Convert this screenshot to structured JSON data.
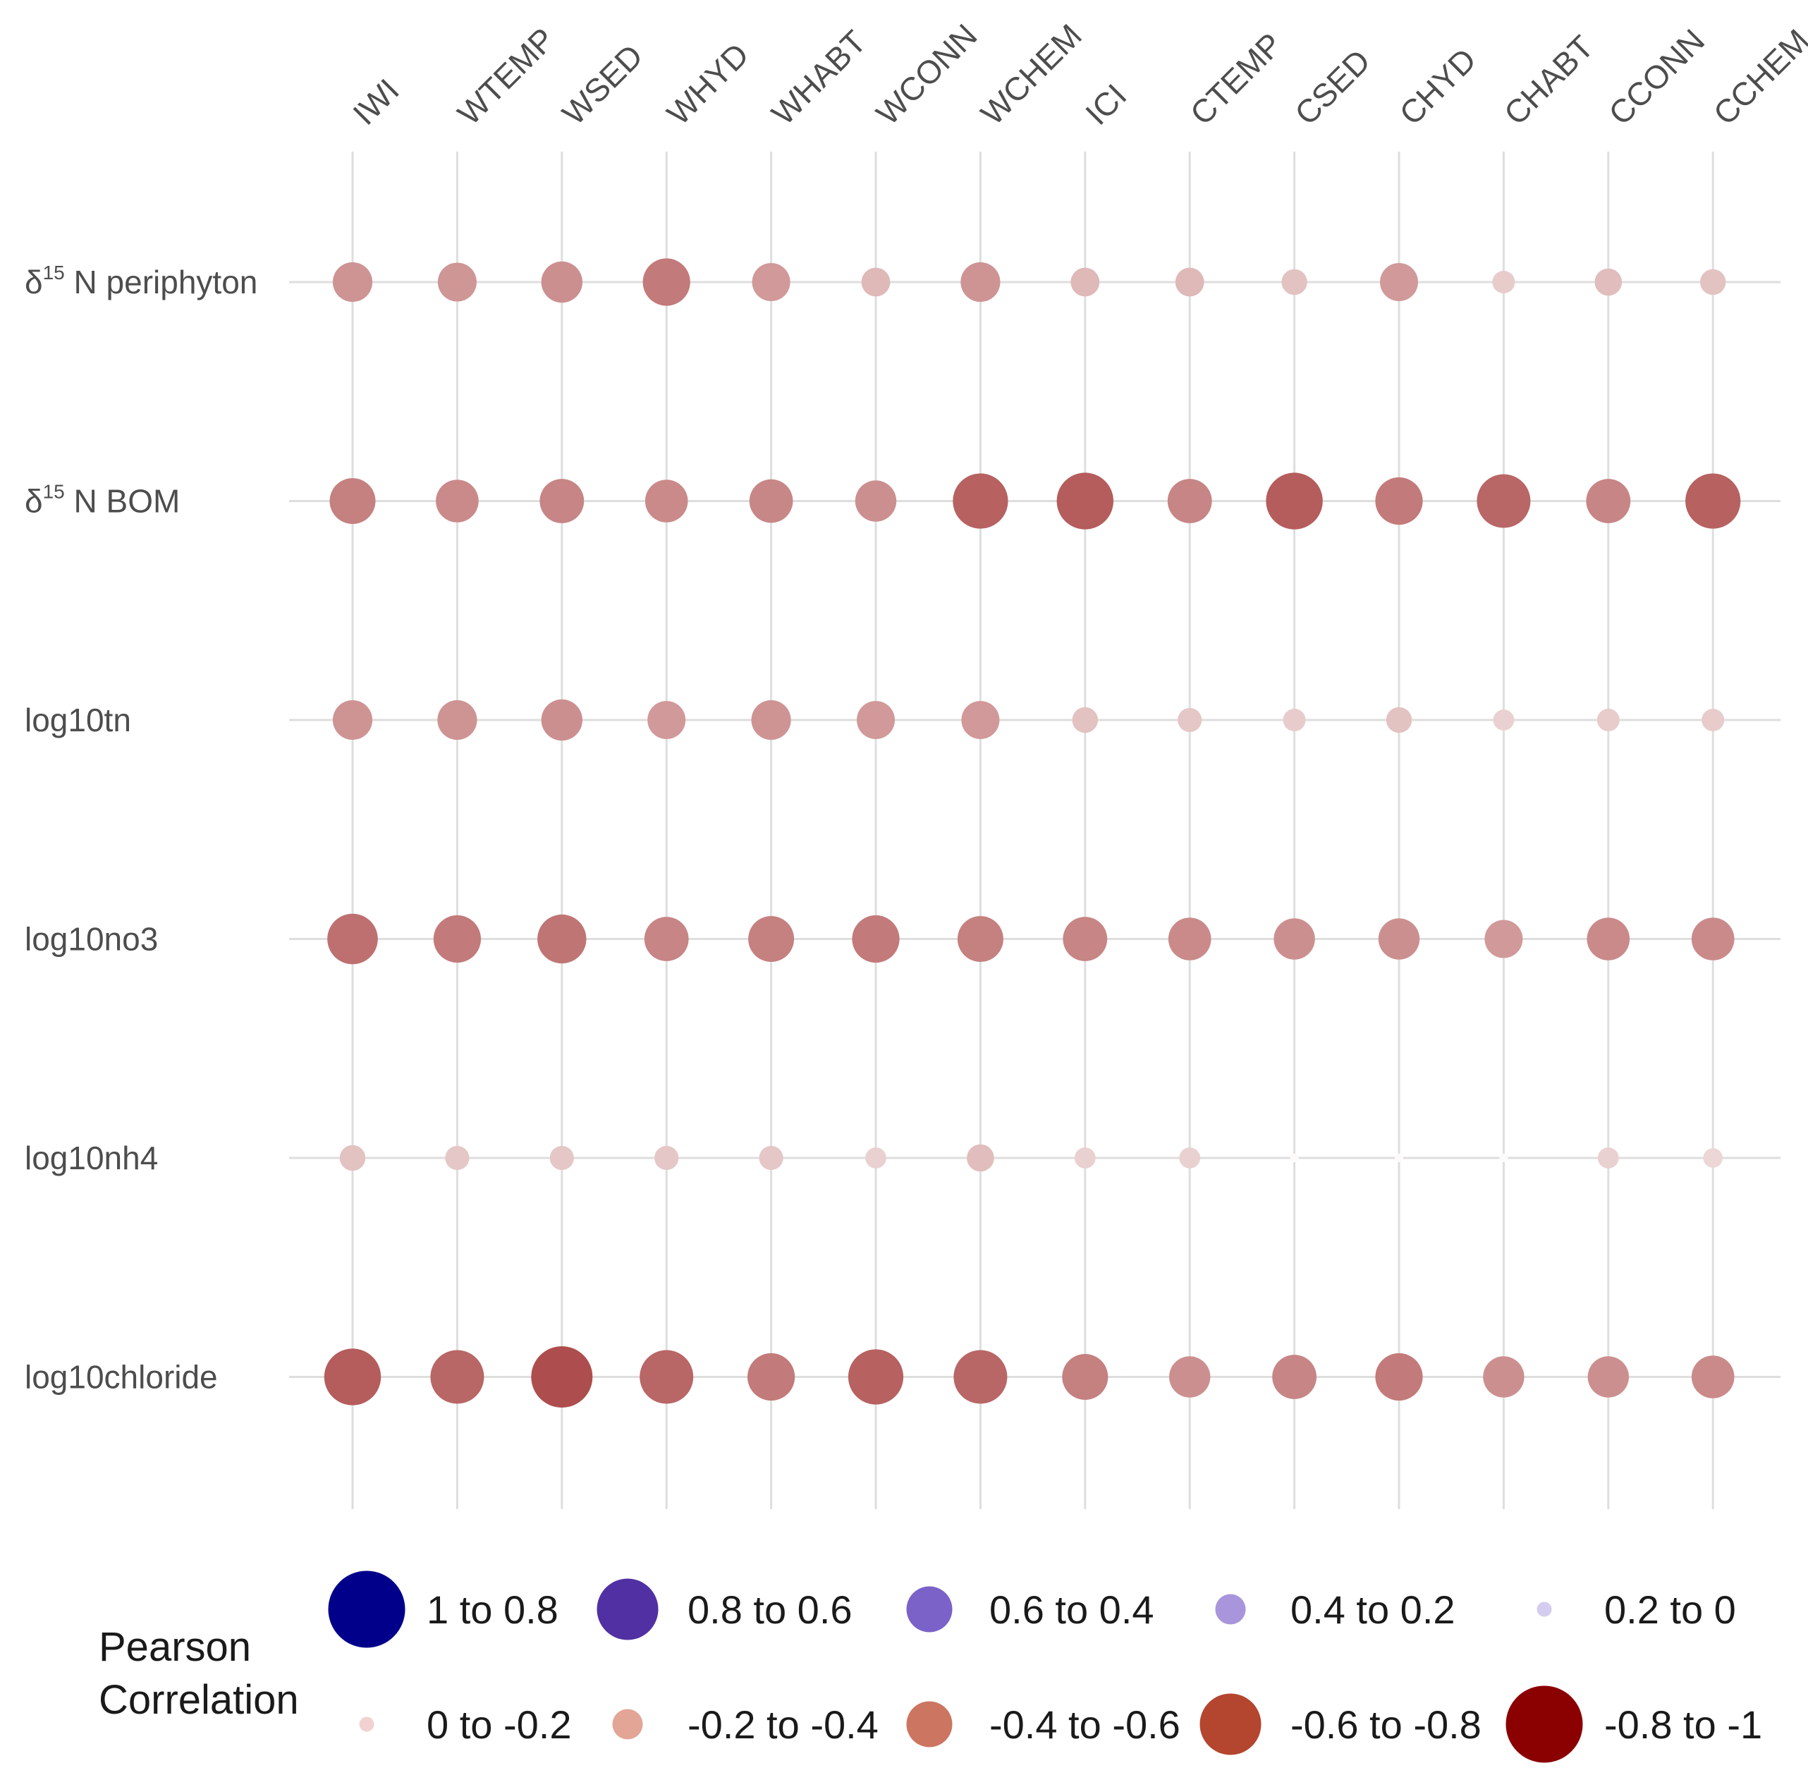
{
  "chart_data": {
    "type": "scatter",
    "subtype": "bubble-correlation-matrix",
    "columns": [
      "IWI",
      "WTEMP",
      "WSED",
      "WHYD",
      "WHABT",
      "WCONN",
      "WCHEM",
      "ICI",
      "CTEMP",
      "CSED",
      "CHYD",
      "CHABT",
      "CCONN",
      "CCHEM"
    ],
    "rows": [
      {
        "label_base": "δ",
        "label_sup": "15",
        "label_rest": " N  periphyton",
        "values": [
          -0.42,
          -0.41,
          -0.44,
          -0.52,
          -0.4,
          -0.28,
          -0.42,
          -0.28,
          -0.28,
          -0.24,
          -0.4,
          -0.2,
          -0.26,
          -0.24
        ]
      },
      {
        "label_base": "δ",
        "label_sup": "15",
        "label_rest": " N  BOM",
        "values": [
          -0.5,
          -0.46,
          -0.48,
          -0.46,
          -0.47,
          -0.44,
          -0.62,
          -0.64,
          -0.48,
          -0.64,
          -0.52,
          -0.6,
          -0.48,
          -0.62
        ]
      },
      {
        "label_base": "log10tn",
        "label_sup": "",
        "label_rest": "",
        "values": [
          -0.42,
          -0.42,
          -0.44,
          -0.4,
          -0.42,
          -0.4,
          -0.4,
          -0.24,
          -0.22,
          -0.2,
          -0.24,
          -0.18,
          -0.2,
          -0.2
        ]
      },
      {
        "label_base": "log10no3",
        "label_sup": "",
        "label_rest": "",
        "values": [
          -0.56,
          -0.52,
          -0.54,
          -0.48,
          -0.5,
          -0.52,
          -0.5,
          -0.48,
          -0.46,
          -0.44,
          -0.44,
          -0.4,
          -0.46,
          -0.46
        ]
      },
      {
        "label_base": "log10nh4",
        "label_sup": "",
        "label_rest": "",
        "values": [
          -0.24,
          -0.22,
          -0.22,
          -0.22,
          -0.22,
          -0.18,
          -0.26,
          -0.18,
          -0.18,
          -0.02,
          -0.02,
          -0.02,
          -0.18,
          -0.16
        ]
      },
      {
        "label_base": "log10chloride",
        "label_sup": "",
        "label_rest": "",
        "values": [
          -0.64,
          -0.6,
          -0.7,
          -0.6,
          -0.52,
          -0.62,
          -0.6,
          -0.5,
          -0.44,
          -0.48,
          -0.52,
          -0.44,
          -0.44,
          -0.46
        ]
      }
    ],
    "color_scale": {
      "low": "#8b0000",
      "mid": "#ffffff",
      "high": "#00008b",
      "domain": [
        -1,
        1
      ]
    },
    "legend": {
      "title_line1": "Pearson",
      "title_line2": "Correlation",
      "position": "bottom",
      "entries": [
        {
          "label": "1 to 0.8",
          "value": 0.9,
          "color": "#00008b"
        },
        {
          "label": "0.8 to 0.6",
          "value": 0.7,
          "color": "#5130a3"
        },
        {
          "label": "0.6 to 0.4",
          "value": 0.5,
          "color": "#7a62c8"
        },
        {
          "label": "0.4 to 0.2",
          "value": 0.3,
          "color": "#a895db"
        },
        {
          "label": "0.2 to 0",
          "value": 0.1,
          "color": "#d5cdef"
        },
        {
          "label": "0 to -0.2",
          "value": -0.1,
          "color": "#f2d2d0"
        },
        {
          "label": "-0.2 to -0.4",
          "value": -0.3,
          "color": "#e3a596"
        },
        {
          "label": "-0.4 to -0.6",
          "value": -0.5,
          "color": "#cc7560"
        },
        {
          "label": "-0.6 to -0.8",
          "value": -0.7,
          "color": "#b4452f"
        },
        {
          "label": "-0.8 to -1",
          "value": -0.9,
          "color": "#8b0000"
        }
      ]
    },
    "grid": true
  }
}
